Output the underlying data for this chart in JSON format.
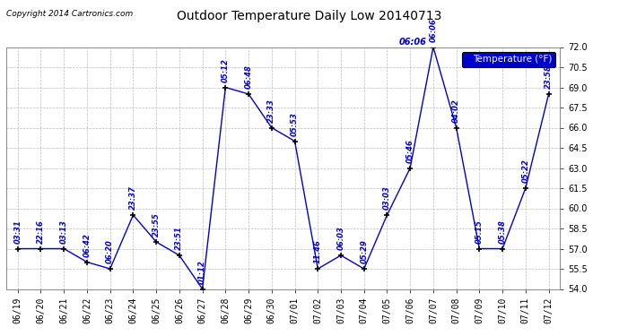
{
  "title": "Outdoor Temperature Daily Low 20140713",
  "copyright": "Copyright 2014 Cartronics.com",
  "legend_label": "Temperature (°F)",
  "line_color": "#0000CC",
  "background_color": "#FFFFFF",
  "plot_bg_color": "#FFFFFF",
  "grid_color": "#BBBBBB",
  "ylim": [
    54.0,
    72.0
  ],
  "yticks": [
    54.0,
    55.5,
    57.0,
    58.5,
    60.0,
    61.5,
    63.0,
    64.5,
    66.0,
    67.5,
    69.0,
    70.5,
    72.0
  ],
  "dates": [
    "06/19",
    "06/20",
    "06/21",
    "06/22",
    "06/23",
    "06/24",
    "06/25",
    "06/26",
    "06/27",
    "06/28",
    "06/29",
    "06/30",
    "07/01",
    "07/02",
    "07/03",
    "07/04",
    "07/05",
    "07/06",
    "07/07",
    "07/08",
    "07/09",
    "07/10",
    "07/11",
    "07/12"
  ],
  "values": [
    57.0,
    57.0,
    57.0,
    56.0,
    55.5,
    59.5,
    57.5,
    56.5,
    54.0,
    69.0,
    68.5,
    66.0,
    65.0,
    55.5,
    56.5,
    55.5,
    59.5,
    63.0,
    72.0,
    66.0,
    57.0,
    57.0,
    61.5,
    68.5
  ],
  "annotations": [
    "03:31",
    "22:16",
    "03:13",
    "06:42",
    "06:20",
    "23:37",
    "23:55",
    "23:51",
    "01:12",
    "05:12",
    "06:48",
    "23:33",
    "05:53",
    "11:46",
    "06:03",
    "05:29",
    "03:03",
    "05:46",
    "06:06",
    "04:02",
    "05:15",
    "05:38",
    "05:22",
    "23:58"
  ],
  "annotation_color": "#0000CC",
  "marker_color": "#000000",
  "legend_bg": "#0000CC",
  "legend_text_color": "#FFFFFF",
  "special_idx": 18,
  "special_ann_color": "#0000CC"
}
